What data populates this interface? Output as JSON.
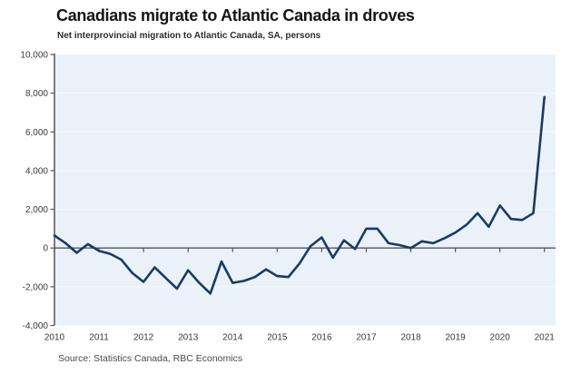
{
  "header": {
    "title": "Canadians migrate to Atlantic Canada in droves",
    "subtitle": "Net interprovincial migration to Atlantic Canada, SA, persons"
  },
  "footer": {
    "source": "Source: Statistics Canada, RBC Economics"
  },
  "chart_data": {
    "type": "line",
    "title": "Canadians migrate to Atlantic Canada in droves",
    "subtitle": "Net interprovincial migration to Atlantic Canada, SA, persons",
    "xlabel": "",
    "ylabel": "persons",
    "frequency": "quarterly",
    "start_period": "2010 Q1",
    "end_period": "2021 Q1",
    "series": [
      {
        "name": "Net interprovincial migration to Atlantic Canada (SA, persons)",
        "values": [
          650,
          250,
          -250,
          200,
          -150,
          -300,
          -600,
          -1300,
          -1750,
          -1000,
          -1550,
          -2100,
          -1150,
          -1800,
          -2350,
          -700,
          -1800,
          -1700,
          -1500,
          -1100,
          -1450,
          -1500,
          -800,
          100,
          550,
          -500,
          400,
          -50,
          1000,
          1000,
          250,
          150,
          0,
          350,
          250,
          500,
          800,
          1200,
          1800,
          1100,
          2200,
          1500,
          1450,
          1800,
          7800
        ]
      }
    ],
    "x_tick_labels": [
      "2010",
      "2011",
      "2012",
      "2013",
      "2014",
      "2015",
      "2016",
      "2017",
      "2018",
      "2019",
      "2020",
      "2021"
    ],
    "y_ticks": {
      "values": [
        10000,
        8000,
        6000,
        4000,
        2000,
        0,
        -2000,
        -4000
      ],
      "labels": [
        "10,000",
        "8,000",
        "6,000",
        "4,000",
        "2,000",
        "0",
        "-2,000",
        "-4,000"
      ]
    },
    "ylim": [
      -4000,
      10000
    ],
    "xlim_years": [
      2010,
      2021.25
    ],
    "grid": "horizontal gridlines every 2,000, zero line emphasized",
    "legend": "none",
    "colors": {
      "line": "#1b3a63",
      "plot_background": "#eaf1f8",
      "gridline": "#f5f9fd",
      "axis": "#55565a",
      "tick_label": "#3a3a3a",
      "title": "#141414",
      "source_text": "#4a4a4a"
    }
  }
}
